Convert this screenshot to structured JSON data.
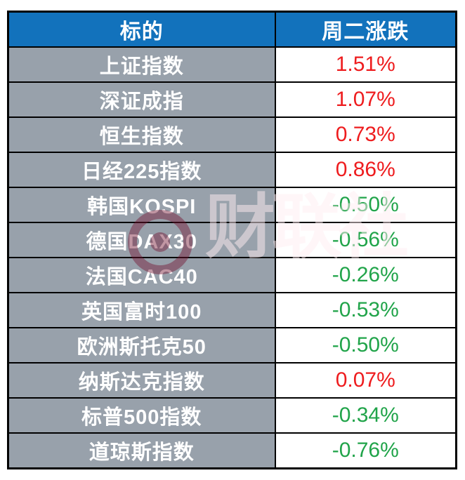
{
  "colors": {
    "header_bg": "#1272bc",
    "header_text": "#ffffff",
    "row_label_bg": "#98a1ab",
    "label_text": "#ffffff",
    "up_red": "#ee1c1e",
    "down_green": "#21a44a",
    "border": "#000000"
  },
  "watermark": {
    "text": "财联社"
  },
  "chart_data": {
    "type": "table",
    "title": "",
    "columns": [
      "标的",
      "周二涨跌"
    ],
    "note_color_coding": "red = rise (up), green = fall (down)",
    "rows": [
      {
        "label": "上证指数",
        "change": "1.51%",
        "direction": "up"
      },
      {
        "label": "深证成指",
        "change": "1.07%",
        "direction": "up"
      },
      {
        "label": "恒生指数",
        "change": "0.73%",
        "direction": "up"
      },
      {
        "label": "日经225指数",
        "change": "0.86%",
        "direction": "up"
      },
      {
        "label": "韩国KOSPI",
        "change": "-0.50%",
        "direction": "down"
      },
      {
        "label": "德国DAX30",
        "change": "-0.56%",
        "direction": "down"
      },
      {
        "label": "法国CAC40",
        "change": "-0.26%",
        "direction": "down"
      },
      {
        "label": "英国富时100",
        "change": "-0.53%",
        "direction": "down"
      },
      {
        "label": "欧洲斯托克50",
        "change": "-0.50%",
        "direction": "down"
      },
      {
        "label": "纳斯达克指数",
        "change": "0.07%",
        "direction": "up"
      },
      {
        "label": "标普500指数",
        "change": "-0.34%",
        "direction": "down"
      },
      {
        "label": "道琼斯指数",
        "change": "-0.76%",
        "direction": "down"
      }
    ]
  }
}
